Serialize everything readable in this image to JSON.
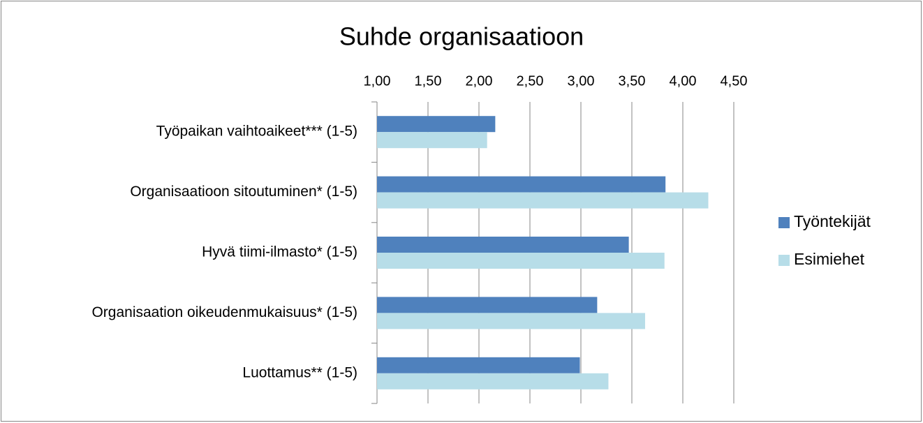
{
  "chart_data": {
    "type": "hbar",
    "title": "Suhde organisaatioon",
    "categories": [
      "Työpaikan vaihtoaikeet*** (1-5)",
      "Organisaatioon sitoutuminen* (1-5)",
      "Hyvä tiimi-ilmasto* (1-5)",
      "Organisaation oikeudenmukaisuus* (1-5)",
      "Luottamus** (1-5)"
    ],
    "series": [
      {
        "name": "Työntekijät",
        "color": "#4f81bd",
        "values": [
          2.16,
          3.83,
          3.47,
          3.16,
          2.99
        ]
      },
      {
        "name": "Esimiehet",
        "color": "#b7dde8",
        "values": [
          2.08,
          4.25,
          3.82,
          3.63,
          3.27
        ]
      }
    ],
    "xlim": [
      1,
      4.5
    ],
    "xticks": [
      {
        "value": 1,
        "label": "1,00"
      },
      {
        "value": 1.5,
        "label": "1,50"
      },
      {
        "value": 2,
        "label": "2,00"
      },
      {
        "value": 2.5,
        "label": "2,50"
      },
      {
        "value": 3,
        "label": "3,00"
      },
      {
        "value": 3.5,
        "label": "3,50"
      },
      {
        "value": 4,
        "label": "4,00"
      },
      {
        "value": 4.5,
        "label": "4,50"
      }
    ],
    "grid": true,
    "legend": "right"
  }
}
